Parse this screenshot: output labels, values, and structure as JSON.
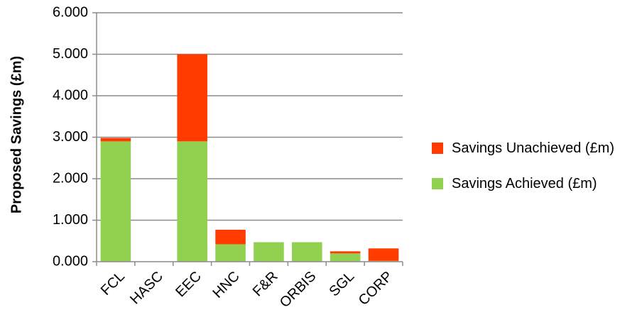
{
  "chart_data": {
    "type": "bar",
    "stacked": true,
    "categories": [
      "FCL",
      "HASC",
      "EEC",
      "HNC",
      "F&R",
      "ORBIS",
      "SGL",
      "CORP"
    ],
    "series": [
      {
        "name": "Savings Achieved (£m)",
        "color": "#92D050",
        "values": [
          2.9,
          0.0,
          2.9,
          0.42,
          0.47,
          0.47,
          0.2,
          0.02
        ]
      },
      {
        "name": "Savings Unachieved (£m)",
        "color": "#FF3B00",
        "values": [
          0.08,
          0.0,
          2.1,
          0.35,
          0.0,
          0.0,
          0.05,
          0.3
        ]
      }
    ],
    "title": "",
    "xlabel": "",
    "ylabel": "Proposed Savings (£m)",
    "ylim": [
      0,
      6
    ],
    "yticks": [
      "0.000",
      "1.000",
      "2.000",
      "3.000",
      "4.000",
      "5.000",
      "6.000"
    ],
    "grid": true,
    "legend_position": "right"
  }
}
